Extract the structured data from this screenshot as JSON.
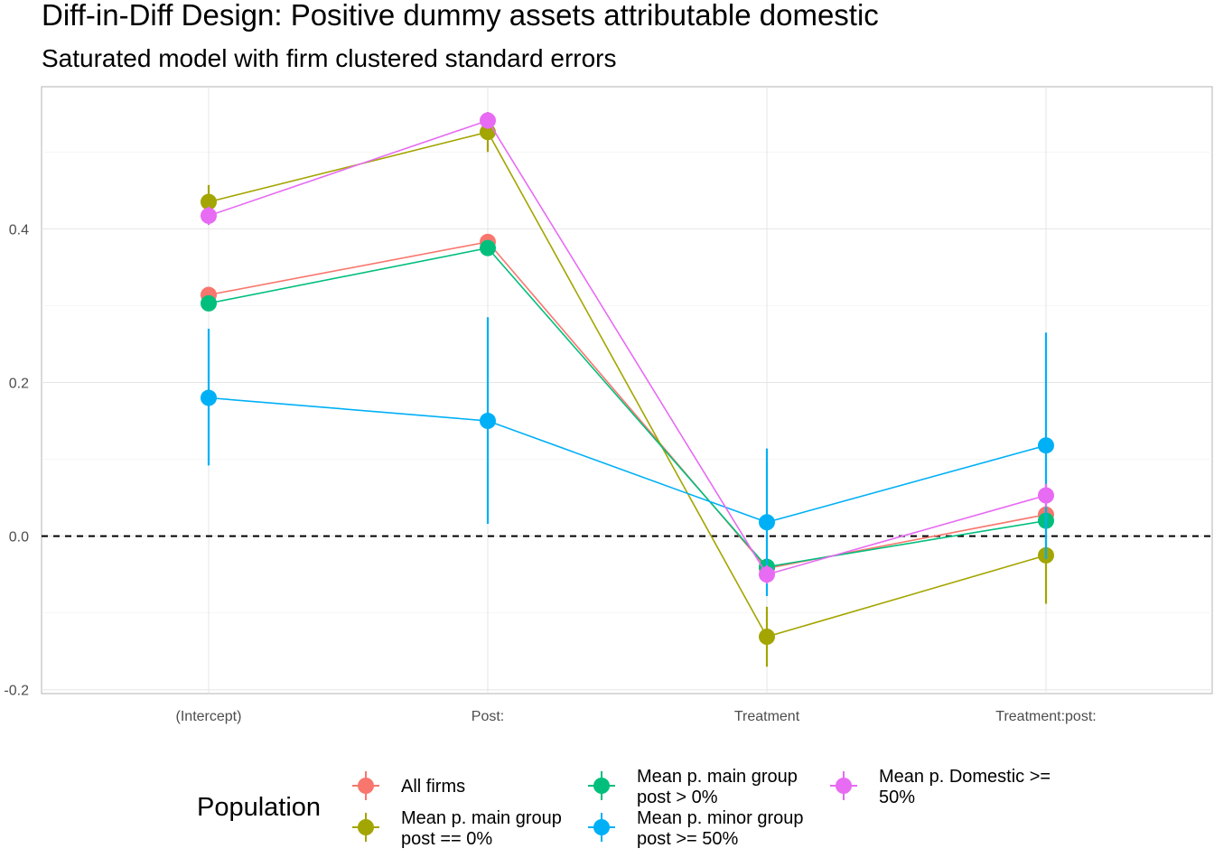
{
  "chart_data": {
    "type": "line",
    "title": "Diff-in-Diff Design: Positive dummy assets attributable domestic",
    "subtitle": "Saturated model with firm clustered standard errors",
    "xlabel": "",
    "ylabel": "",
    "categories": [
      "(Intercept)",
      "Post:",
      "Treatment",
      "Treatment:post:"
    ],
    "ylim": [
      -0.205,
      0.585
    ],
    "yticks": [
      -0.2,
      0.0,
      0.2,
      0.4
    ],
    "ytick_labels": [
      "-0.2",
      "0.0",
      "0.2",
      "0.4"
    ],
    "reference_line": 0.0,
    "grid": true,
    "legend": {
      "title": "Population",
      "position": "bottom"
    },
    "series": [
      {
        "name": "All firms",
        "legend_lines": [
          "All firms"
        ],
        "color": "#F8766D",
        "values": [
          0.314,
          0.383,
          -0.042,
          0.028
        ],
        "lower": [
          0.306,
          0.376,
          -0.049,
          0.02
        ],
        "upper": [
          0.322,
          0.39,
          -0.035,
          0.036
        ]
      },
      {
        "name": "Mean p. main group post == 0%",
        "legend_lines": [
          "Mean p. main group",
          "post == 0%"
        ],
        "color": "#A3A500",
        "values": [
          0.435,
          0.526,
          -0.131,
          -0.025
        ],
        "lower": [
          0.415,
          0.5,
          -0.17,
          -0.088
        ],
        "upper": [
          0.457,
          0.552,
          -0.092,
          0.038
        ]
      },
      {
        "name": "Mean p. main group post > 0%",
        "legend_lines": [
          "Mean p. main group",
          "post > 0%"
        ],
        "color": "#00BF7D",
        "values": [
          0.303,
          0.375,
          -0.04,
          0.02
        ],
        "lower": [
          0.295,
          0.368,
          -0.048,
          0.012
        ],
        "upper": [
          0.311,
          0.382,
          -0.032,
          0.028
        ]
      },
      {
        "name": "Mean p. minor group post >= 50%",
        "legend_lines": [
          "Mean p. minor group",
          "post >= 50%"
        ],
        "color": "#00B0F6",
        "values": [
          0.18,
          0.15,
          0.018,
          0.118
        ],
        "lower": [
          0.092,
          0.016,
          -0.078,
          -0.03
        ],
        "upper": [
          0.27,
          0.285,
          0.114,
          0.265
        ]
      },
      {
        "name": "Mean p. Domestic >= 50%",
        "legend_lines": [
          "Mean p. Domestic >=",
          "50%"
        ],
        "color": "#E76BF3",
        "values": [
          0.417,
          0.541,
          -0.05,
          0.053
        ],
        "lower": [
          0.405,
          0.53,
          -0.062,
          0.038
        ],
        "upper": [
          0.429,
          0.552,
          -0.038,
          0.068
        ]
      }
    ]
  }
}
